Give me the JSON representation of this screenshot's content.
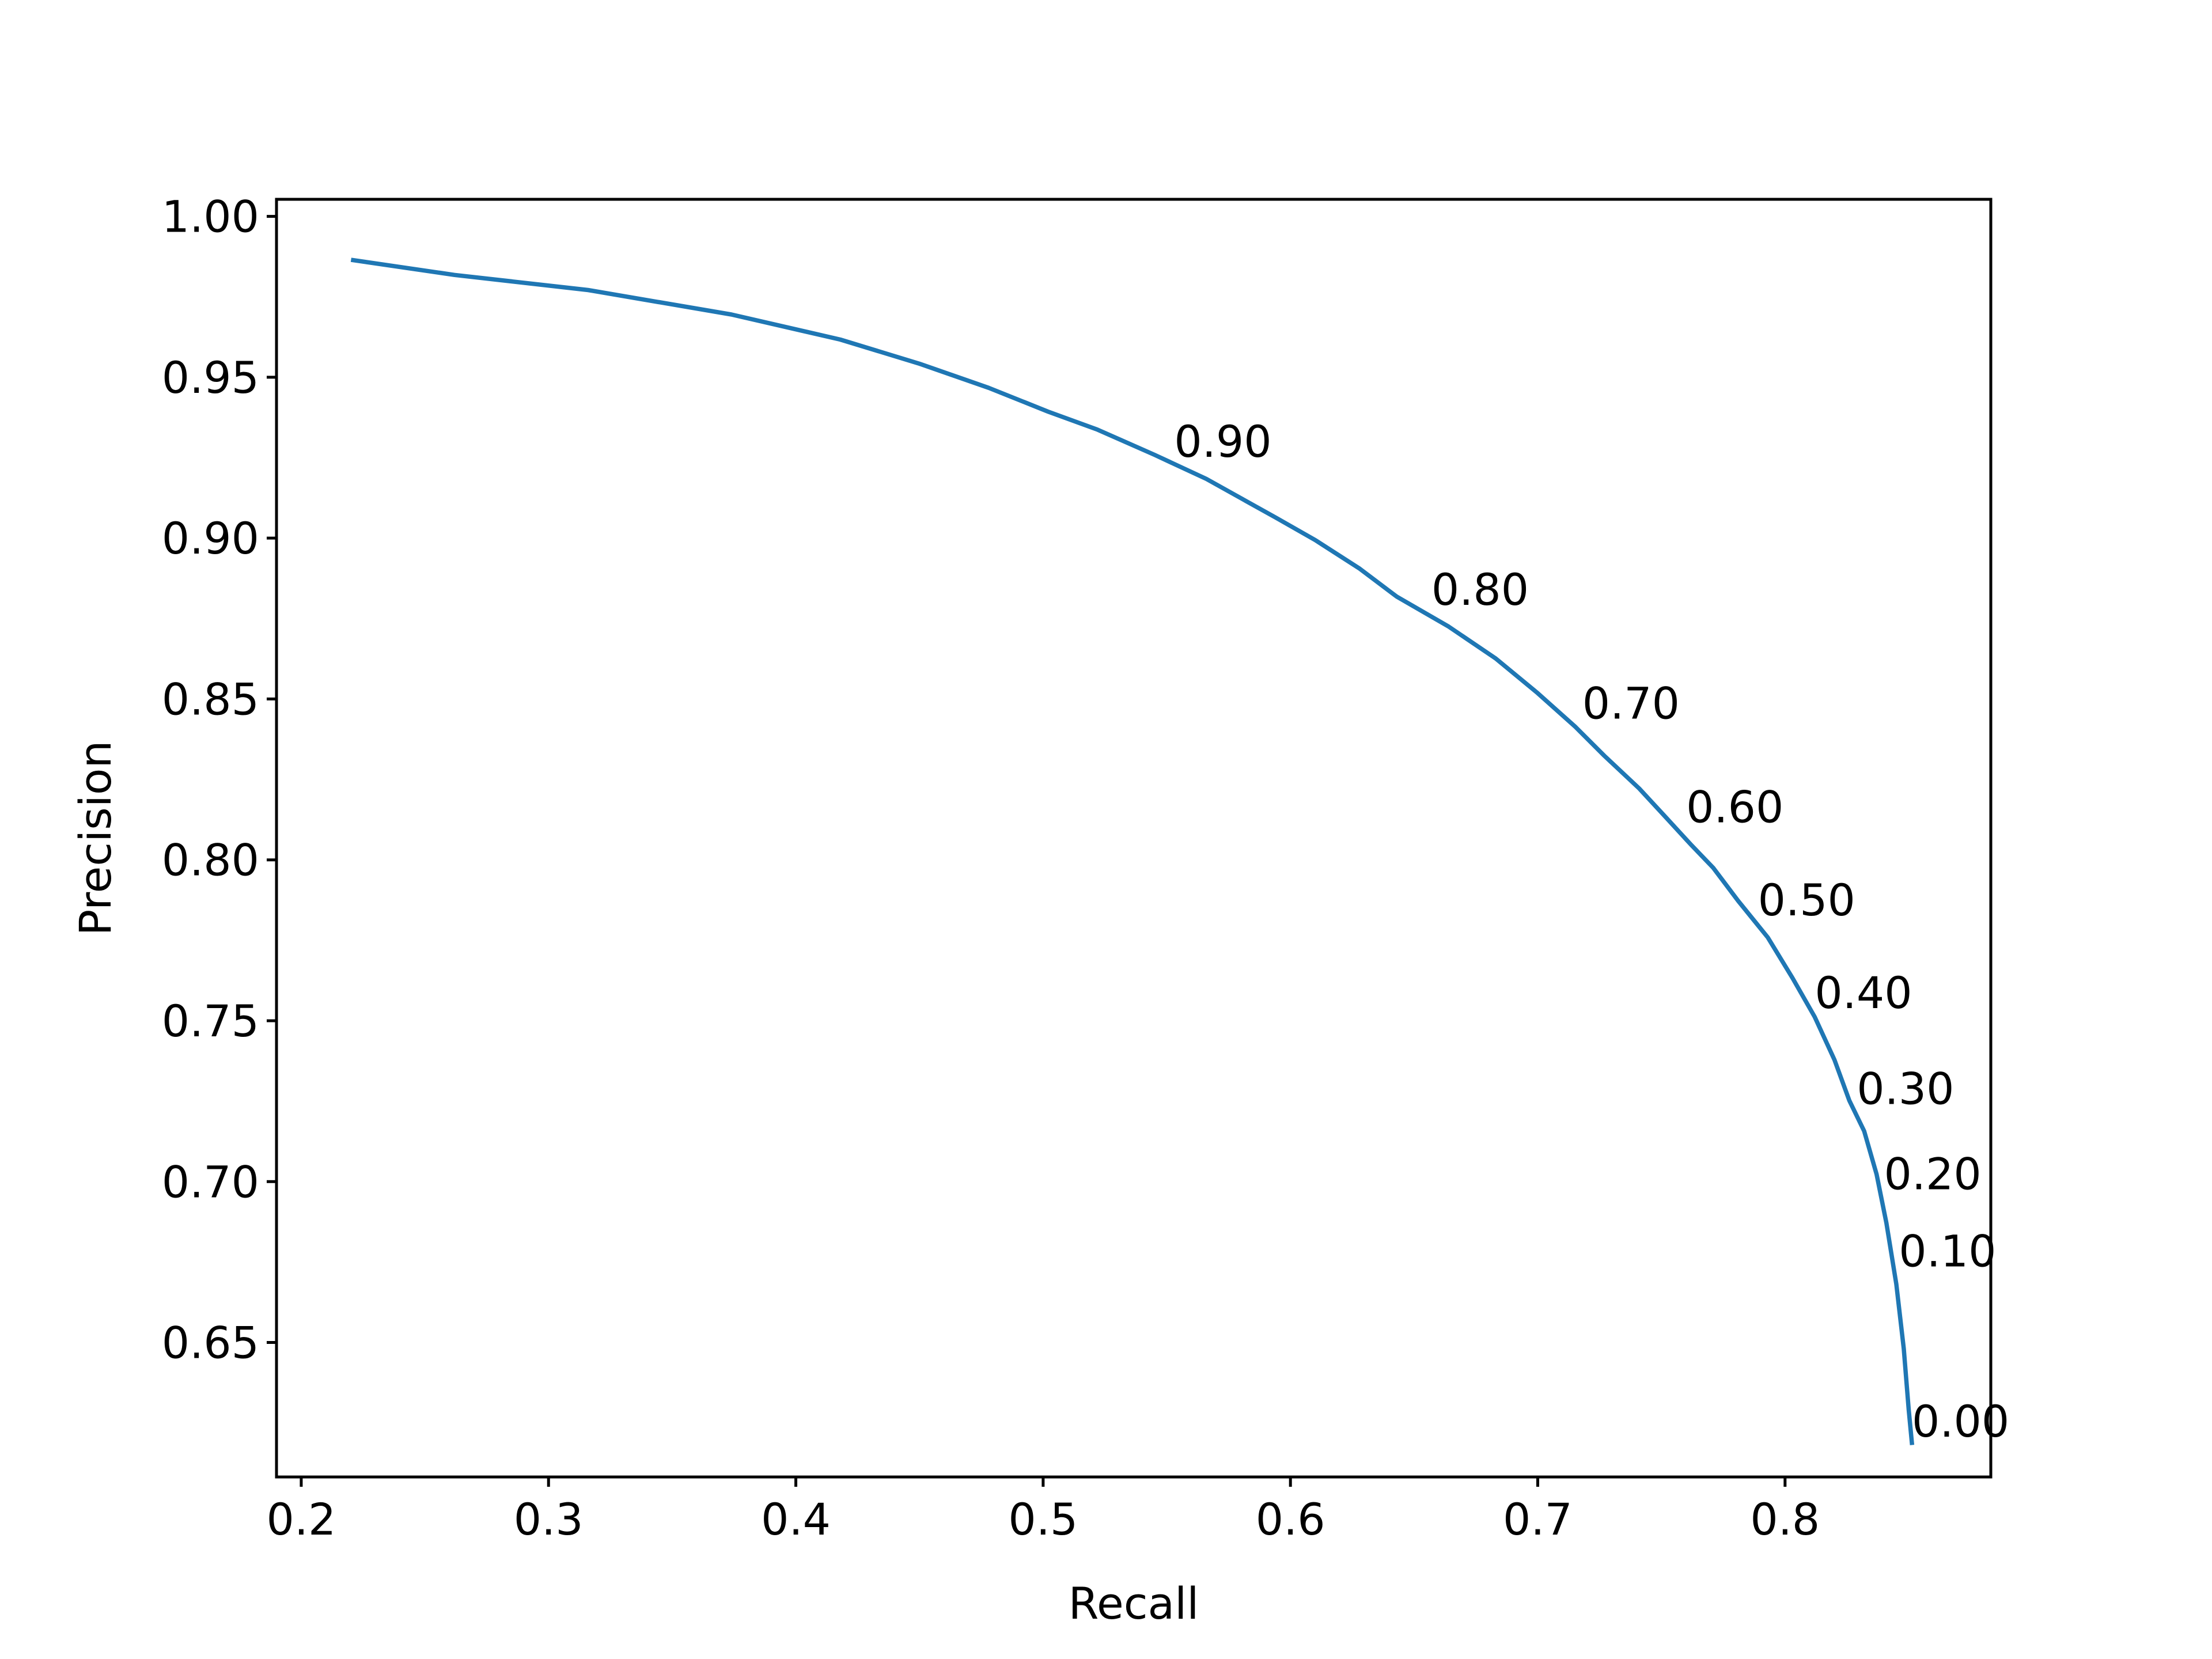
{
  "chart_data": {
    "type": "line",
    "title": "",
    "xlabel": "Recall",
    "ylabel": "Precision",
    "xlim": [
      0.19,
      0.8832
    ],
    "ylim": [
      0.6082,
      1.0053
    ],
    "xticks": [
      {
        "value": 0.2,
        "label": "0.2"
      },
      {
        "value": 0.3,
        "label": "0.3"
      },
      {
        "value": 0.4,
        "label": "0.4"
      },
      {
        "value": 0.5,
        "label": "0.5"
      },
      {
        "value": 0.6,
        "label": "0.6"
      },
      {
        "value": 0.7,
        "label": "0.7"
      },
      {
        "value": 0.8,
        "label": "0.8"
      }
    ],
    "yticks": [
      {
        "value": 0.65,
        "label": "0.65"
      },
      {
        "value": 0.7,
        "label": "0.70"
      },
      {
        "value": 0.75,
        "label": "0.75"
      },
      {
        "value": 0.8,
        "label": "0.80"
      },
      {
        "value": 0.85,
        "label": "0.85"
      },
      {
        "value": 0.9,
        "label": "0.90"
      },
      {
        "value": 0.95,
        "label": "0.95"
      },
      {
        "value": 1.0,
        "label": "1.00"
      }
    ],
    "grid": false,
    "legend": "none",
    "series": [
      {
        "color": "#1f77b4",
        "x": [
          0.221,
          0.262,
          0.316,
          0.374,
          0.418,
          0.45,
          0.478,
          0.502,
          0.522,
          0.545,
          0.566,
          0.58,
          0.594,
          0.61,
          0.628,
          0.643,
          0.664,
          0.683,
          0.7,
          0.715,
          0.727,
          0.741,
          0.751,
          0.762,
          0.771,
          0.781,
          0.793,
          0.803,
          0.812,
          0.82,
          0.826,
          0.832,
          0.837,
          0.841,
          0.845,
          0.848,
          0.85,
          0.8513
        ],
        "y": [
          0.9864,
          0.9818,
          0.9771,
          0.9695,
          0.9617,
          0.9542,
          0.9467,
          0.9393,
          0.9337,
          0.9259,
          0.9184,
          0.9124,
          0.9064,
          0.8994,
          0.8905,
          0.8818,
          0.8725,
          0.8626,
          0.8518,
          0.8415,
          0.8323,
          0.8222,
          0.8139,
          0.8047,
          0.7975,
          0.7873,
          0.7759,
          0.7633,
          0.7512,
          0.7378,
          0.7252,
          0.7157,
          0.7023,
          0.6871,
          0.6681,
          0.6481,
          0.6291,
          0.6188
        ]
      }
    ],
    "annotations": [
      {
        "text": "0.90",
        "x": 0.553,
        "y": 0.9253
      },
      {
        "text": "0.80",
        "x": 0.657,
        "y": 0.8793
      },
      {
        "text": "0.70",
        "x": 0.718,
        "y": 0.8439
      },
      {
        "text": "0.60",
        "x": 0.76,
        "y": 0.8117
      },
      {
        "text": "0.50",
        "x": 0.789,
        "y": 0.7828
      },
      {
        "text": "0.40",
        "x": 0.812,
        "y": 0.7539
      },
      {
        "text": "0.30",
        "x": 0.829,
        "y": 0.7241
      },
      {
        "text": "0.20",
        "x": 0.84,
        "y": 0.6976
      },
      {
        "text": "0.10",
        "x": 0.846,
        "y": 0.6736
      },
      {
        "text": "0.00",
        "x": 0.8513,
        "y": 0.6207
      }
    ]
  }
}
